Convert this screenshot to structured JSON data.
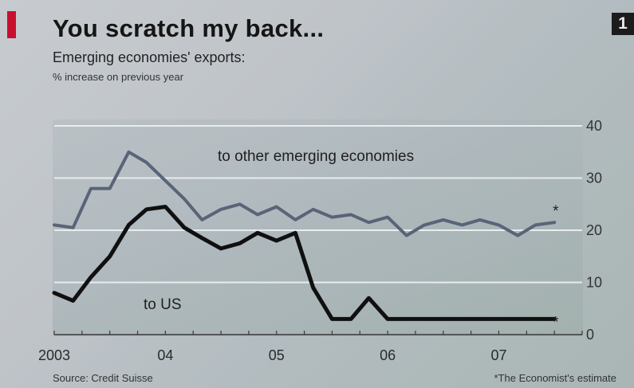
{
  "header": {
    "title": "You scratch my back...",
    "subtitle": "Emerging economies' exports:",
    "unit": "% increase on previous year",
    "chart_number": "1"
  },
  "footer": {
    "source": "Source: Credit Suisse",
    "note": "*The Economist's estimate"
  },
  "colors": {
    "accent_red": "#c8102e",
    "series_other": "#5a6478",
    "series_us": "#101010",
    "gridline": "#e8ecee"
  },
  "chart_data": {
    "type": "line",
    "title": "You scratch my back...",
    "subtitle": "Emerging economies' exports:",
    "ylabel": "% increase on previous year",
    "ylim": [
      0,
      40
    ],
    "yticks": [
      0,
      10,
      20,
      30,
      40
    ],
    "xlim": [
      2003.0,
      2007.75
    ],
    "xticks": [
      {
        "value": 2003.0,
        "label": "2003"
      },
      {
        "value": 2004.0,
        "label": "04"
      },
      {
        "value": 2005.0,
        "label": "05"
      },
      {
        "value": 2006.0,
        "label": "06"
      },
      {
        "value": 2007.0,
        "label": "07"
      }
    ],
    "grid": true,
    "y_axis_position": "right",
    "series": [
      {
        "name": "to other emerging economies",
        "color": "#5a6478",
        "x": [
          2003.0,
          2003.17,
          2003.33,
          2003.5,
          2003.67,
          2003.83,
          2004.0,
          2004.17,
          2004.33,
          2004.5,
          2004.67,
          2004.83,
          2005.0,
          2005.17,
          2005.33,
          2005.5,
          2005.67,
          2005.83,
          2006.0,
          2006.17,
          2006.33,
          2006.5,
          2006.67,
          2006.83,
          2007.0,
          2007.17,
          2007.33,
          2007.5
        ],
        "values": [
          21,
          20.5,
          28,
          28,
          35,
          33,
          29.5,
          26,
          22,
          24,
          25,
          23,
          24.5,
          22,
          24,
          22.5,
          23,
          21.5,
          22.5,
          19,
          21,
          22,
          21,
          22,
          21,
          19,
          21,
          21.5
        ]
      },
      {
        "name": "to US",
        "color": "#101010",
        "x": [
          2003.0,
          2003.17,
          2003.33,
          2003.5,
          2003.67,
          2003.83,
          2004.0,
          2004.17,
          2004.33,
          2004.5,
          2004.67,
          2004.83,
          2005.0,
          2005.17,
          2005.33,
          2005.5,
          2005.67,
          2005.83,
          2006.0,
          2006.17,
          2006.33,
          2006.5,
          2006.67,
          2006.83,
          2007.0,
          2007.17,
          2007.33,
          2007.5
        ],
        "values": [
          8,
          6.5,
          11,
          15,
          21,
          24,
          24.5,
          20.5,
          18.5,
          16.5,
          17.5,
          19.5,
          18,
          19.5,
          9,
          3,
          3,
          7,
          3,
          3,
          3,
          3,
          3,
          3,
          3,
          3,
          3,
          3
        ]
      }
    ],
    "annotations": [
      {
        "text": "to other emerging economies",
        "series": 0
      },
      {
        "text": "to US",
        "series": 1
      },
      {
        "text": "*",
        "series": 0
      },
      {
        "text": "*",
        "series": 1
      }
    ]
  }
}
